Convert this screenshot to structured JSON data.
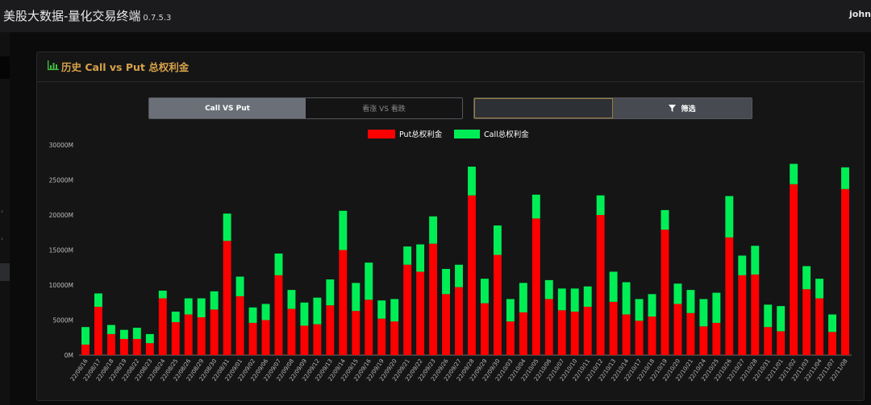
{
  "app": {
    "title": "美股大数据-量化交易终端",
    "version": "0.7.5.3",
    "user": "john"
  },
  "panel": {
    "icon": "bar-chart-icon",
    "title": "历史 Call vs Put 总权利金"
  },
  "tabs": [
    {
      "label": "Call VS Put",
      "active": true
    },
    {
      "label": "看涨 VS 看跌",
      "active": false
    }
  ],
  "filter": {
    "value": "",
    "placeholder": "",
    "button_label": "筛选",
    "icon": "filter-icon"
  },
  "chart_data": {
    "type": "bar",
    "stacked": true,
    "legend_position": "top-center",
    "grid": false,
    "ylim": [
      0,
      30000
    ],
    "yticks": [
      "0M",
      "5000M",
      "10000M",
      "15000M",
      "20000M",
      "25000M",
      "30000M"
    ],
    "categories": [
      "22/08/16",
      "22/08/17",
      "22/08/18",
      "22/08/19",
      "22/08/22",
      "22/08/23",
      "22/08/24",
      "22/08/25",
      "22/08/26",
      "22/08/29",
      "22/08/30",
      "22/08/31",
      "22/09/01",
      "22/09/02",
      "22/09/06",
      "22/09/07",
      "22/09/08",
      "22/09/09",
      "22/09/12",
      "22/09/13",
      "22/09/14",
      "22/09/15",
      "22/09/16",
      "22/09/19",
      "22/09/20",
      "22/09/21",
      "22/09/22",
      "22/09/23",
      "22/09/26",
      "22/09/27",
      "22/09/28",
      "22/09/29",
      "22/09/30",
      "22/10/03",
      "22/10/04",
      "22/10/05",
      "22/10/06",
      "22/10/07",
      "22/10/10",
      "22/10/11",
      "22/10/12",
      "22/10/13",
      "22/10/14",
      "22/10/17",
      "22/10/18",
      "22/10/19",
      "22/10/20",
      "22/10/21",
      "22/10/24",
      "22/10/25",
      "22/10/26",
      "22/10/27",
      "22/10/28",
      "22/10/31",
      "22/11/01",
      "22/11/02",
      "22/11/03",
      "22/11/04",
      "22/11/07",
      "22/11/08"
    ],
    "series": [
      {
        "name": "Put总权利金",
        "color": "#ff0000",
        "values": [
          1500,
          6900,
          3000,
          2300,
          2300,
          1700,
          8100,
          4700,
          5800,
          5400,
          6500,
          16300,
          8400,
          4600,
          5000,
          11400,
          6600,
          4200,
          4400,
          7100,
          15000,
          6300,
          7900,
          5200,
          4800,
          12900,
          11900,
          15900,
          8700,
          9700,
          22800,
          7400,
          14300,
          4800,
          6100,
          19500,
          8000,
          6400,
          6200,
          6900,
          20000,
          7600,
          5800,
          4900,
          5500,
          17900,
          7300,
          6000,
          4100,
          4600,
          16800,
          11400,
          11500,
          4000,
          3400,
          24400,
          9400,
          8100,
          3300,
          23700
        ]
      },
      {
        "name": "Call总权利金",
        "color": "#00ee55",
        "values": [
          2500,
          1900,
          1300,
          1300,
          1600,
          1300,
          1100,
          1500,
          2300,
          2700,
          2600,
          3900,
          2800,
          2200,
          2300,
          3100,
          2700,
          3300,
          3800,
          3700,
          5600,
          4000,
          5300,
          2600,
          3200,
          2600,
          3900,
          3900,
          3600,
          3200,
          4100,
          3500,
          4200,
          3200,
          4200,
          3400,
          2700,
          3100,
          3300,
          2900,
          2800,
          4300,
          4600,
          3100,
          3200,
          2800,
          2900,
          3300,
          3900,
          4300,
          5900,
          2800,
          4100,
          3200,
          3600,
          2900,
          3300,
          2800,
          2500,
          3100
        ]
      }
    ]
  }
}
